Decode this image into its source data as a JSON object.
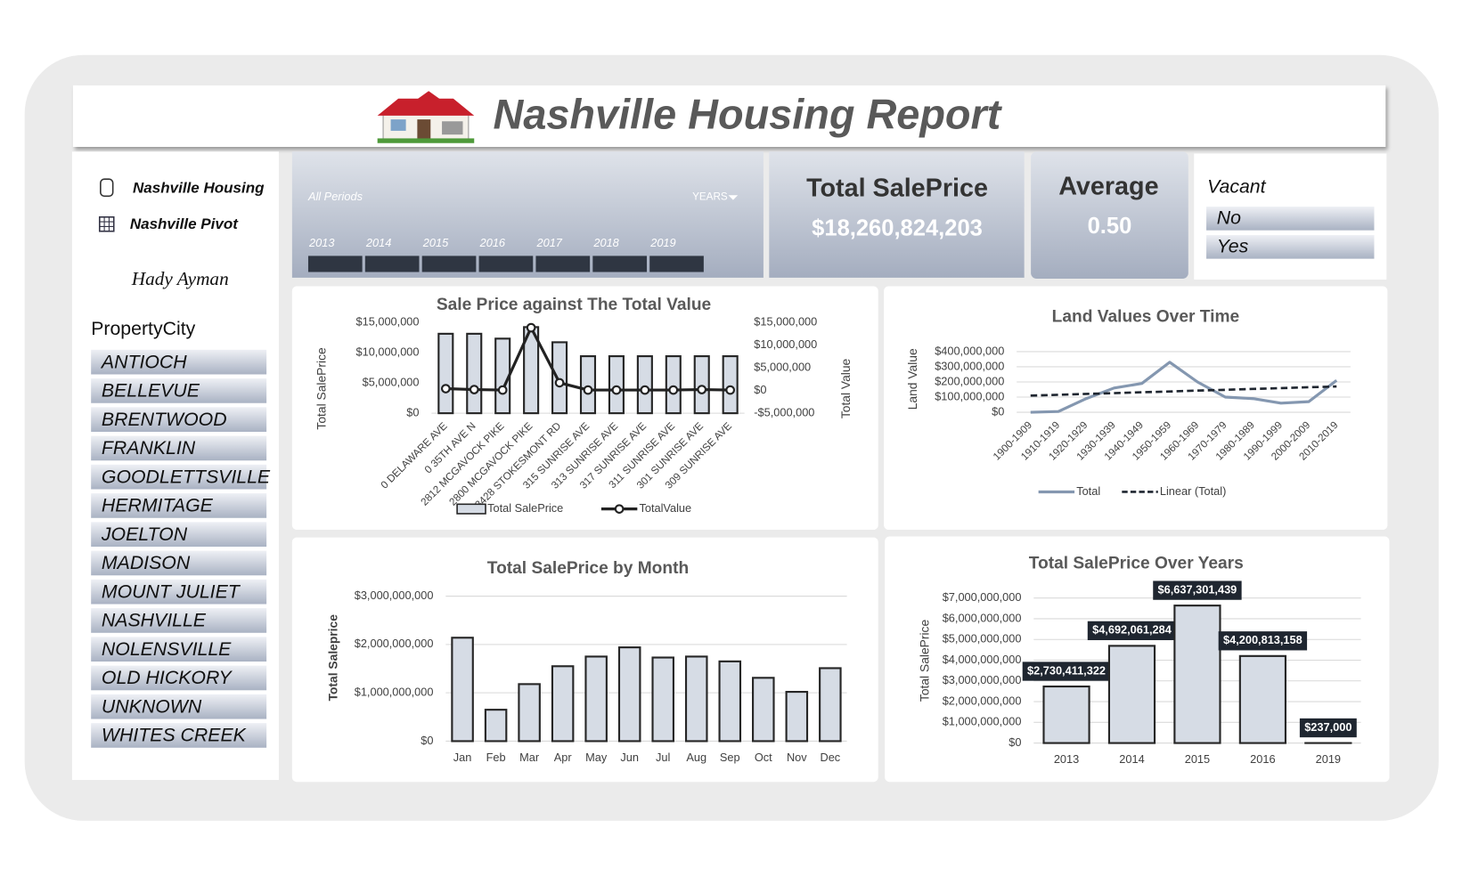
{
  "header": {
    "title": "Nashville Housing Report"
  },
  "sidebar": {
    "links": [
      "Nashville Housing",
      "Nashville Pivot"
    ],
    "author": "Hady Ayman",
    "slicer_title": "PropertyCity",
    "cities": [
      "ANTIOCH",
      "BELLEVUE",
      "BRENTWOOD",
      "FRANKLIN",
      "GOODLETTSVILLE",
      "HERMITAGE",
      "JOELTON",
      "MADISON",
      "MOUNT JULIET",
      "NASHVILLE",
      "NOLENSVILLE",
      "OLD HICKORY",
      "UNKNOWN",
      "WHITES CREEK"
    ]
  },
  "timeline": {
    "label": "All Periods",
    "unit": "YEARS",
    "years": [
      "2013",
      "2014",
      "2015",
      "2016",
      "2017",
      "2018",
      "2019"
    ]
  },
  "kpis": [
    {
      "label": "Total SalePrice",
      "value": "$18,260,824,203"
    },
    {
      "label": "Average",
      "value": "0.50"
    }
  ],
  "vacant": {
    "title": "Vacant",
    "options": [
      "No",
      "Yes"
    ]
  },
  "chart_data": [
    {
      "type": "bar",
      "title": "Sale Price against The Total Value",
      "categories": [
        "0 DELAWARE AVE",
        "0 35TH AVE N",
        "2812 MCGAVOCK PIKE",
        "2800 MCGAVOCK PIKE",
        "3428 STOKESMONT RD",
        "315 SUNRISE AVE",
        "313 SUNRISE AVE",
        "317 SUNRISE AVE",
        "311 SUNRISE AVE",
        "301 SUNRISE AVE",
        "309 SUNRISE AVE"
      ],
      "series": [
        {
          "name": "Total SalePrice",
          "type": "bar",
          "color": "#d6dce5",
          "values": [
            13100000,
            13100000,
            12300000,
            14200000,
            11700000,
            9400000,
            9400000,
            9400000,
            9400000,
            9400000,
            9400000
          ]
        },
        {
          "name": "TotalValue",
          "type": "line",
          "color": "#222222",
          "markers": true,
          "axis": "y2",
          "values": [
            400000,
            200000,
            100000,
            13800000,
            1700000,
            100000,
            100000,
            100000,
            100000,
            200000,
            100000
          ]
        }
      ],
      "ylim": [
        0,
        15000000
      ],
      "yticks": [
        {
          "value": 0,
          "label": "$0"
        },
        {
          "value": 5000000,
          "label": "$5,000,000"
        },
        {
          "value": 10000000,
          "label": "$10,000,000"
        },
        {
          "value": 15000000,
          "label": "$15,000,000"
        }
      ],
      "y2lim": [
        -5000000,
        15000000
      ],
      "y2ticks": [
        {
          "value": -5000000,
          "label": "-$5,000,000"
        },
        {
          "value": 0,
          "label": "$0"
        },
        {
          "value": 5000000,
          "label": "$5,000,000"
        },
        {
          "value": 10000000,
          "label": "$10,000,000"
        },
        {
          "value": 15000000,
          "label": "$15,000,000"
        }
      ],
      "ylabel": "Total SalePrice",
      "y2label": "Total Value",
      "grid": false,
      "legend": "bottom"
    },
    {
      "type": "line",
      "title": "Land Values Over Time",
      "categories": [
        "1900-1909",
        "1910-1919",
        "1920-1929",
        "1930-1939",
        "1940-1949",
        "1950-1959",
        "1960-1969",
        "1970-1979",
        "1980-1989",
        "1990-1999",
        "2000-2009",
        "2010-2019"
      ],
      "series": [
        {
          "name": "Total",
          "type": "line",
          "color": "#8497b0",
          "values": [
            0,
            5000000,
            90000000,
            160000000,
            190000000,
            330000000,
            200000000,
            100000000,
            90000000,
            60000000,
            70000000,
            210000000
          ]
        },
        {
          "name": "Linear (Total)",
          "type": "line",
          "color": "#1f2630",
          "style": "dashed",
          "values": [
            110000000,
            115000000,
            121000000,
            126000000,
            132000000,
            137000000,
            143000000,
            148000000,
            154000000,
            159000000,
            165000000,
            170000000
          ]
        }
      ],
      "ylim": [
        0,
        400000000
      ],
      "yticks": [
        {
          "value": 0,
          "label": "$0"
        },
        {
          "value": 100000000,
          "label": "$100,000,000"
        },
        {
          "value": 200000000,
          "label": "$200,000,000"
        },
        {
          "value": 300000000,
          "label": "$300,000,000"
        },
        {
          "value": 400000000,
          "label": "$400,000,000"
        }
      ],
      "ylabel": "Land Value",
      "grid": true,
      "legend": "bottom"
    },
    {
      "type": "bar",
      "title": "Total SalePrice by Month",
      "categories": [
        "Jan",
        "Feb",
        "Mar",
        "Apr",
        "May",
        "Jun",
        "Jul",
        "Aug",
        "Sep",
        "Oct",
        "Nov",
        "Dec"
      ],
      "series": [
        {
          "name": "Total SalePrice",
          "type": "bar",
          "color": "#d6dce5",
          "values": [
            2140000000,
            650000000,
            1180000000,
            1550000000,
            1750000000,
            1940000000,
            1730000000,
            1750000000,
            1650000000,
            1310000000,
            1020000000,
            1510000000
          ]
        }
      ],
      "ylim": [
        0,
        3000000000
      ],
      "yticks": [
        {
          "value": 0,
          "label": "$0"
        },
        {
          "value": 1000000000,
          "label": "$1,000,000,000"
        },
        {
          "value": 2000000000,
          "label": "$2,000,000,000"
        },
        {
          "value": 3000000000,
          "label": "$3,000,000,000"
        }
      ],
      "ylabel": "Total Saleprice",
      "grid": true
    },
    {
      "type": "bar",
      "title": "Total SalePrice Over Years",
      "categories": [
        "2013",
        "2014",
        "2015",
        "2016",
        "2019"
      ],
      "series": [
        {
          "name": "Total SalePrice",
          "type": "bar",
          "color": "#d6dce5",
          "values": [
            2730411322,
            4692061284,
            6637301439,
            4200813158,
            237000
          ],
          "value_labels": [
            "$2,730,411,322",
            "$4,692,061,284",
            "$6,637,301,439",
            "$4,200,813,158",
            "$237,000"
          ]
        }
      ],
      "ylim": [
        0,
        7000000000
      ],
      "yticks": [
        {
          "value": 0,
          "label": "$0"
        },
        {
          "value": 1000000000,
          "label": "$1,000,000,000"
        },
        {
          "value": 2000000000,
          "label": "$2,000,000,000"
        },
        {
          "value": 3000000000,
          "label": "$3,000,000,000"
        },
        {
          "value": 4000000000,
          "label": "$4,000,000,000"
        },
        {
          "value": 5000000000,
          "label": "$5,000,000,000"
        },
        {
          "value": 6000000000,
          "label": "$6,000,000,000"
        },
        {
          "value": 7000000000,
          "label": "$7,000,000,000"
        }
      ],
      "ylabel": "Total SalePrice",
      "grid": true
    }
  ]
}
